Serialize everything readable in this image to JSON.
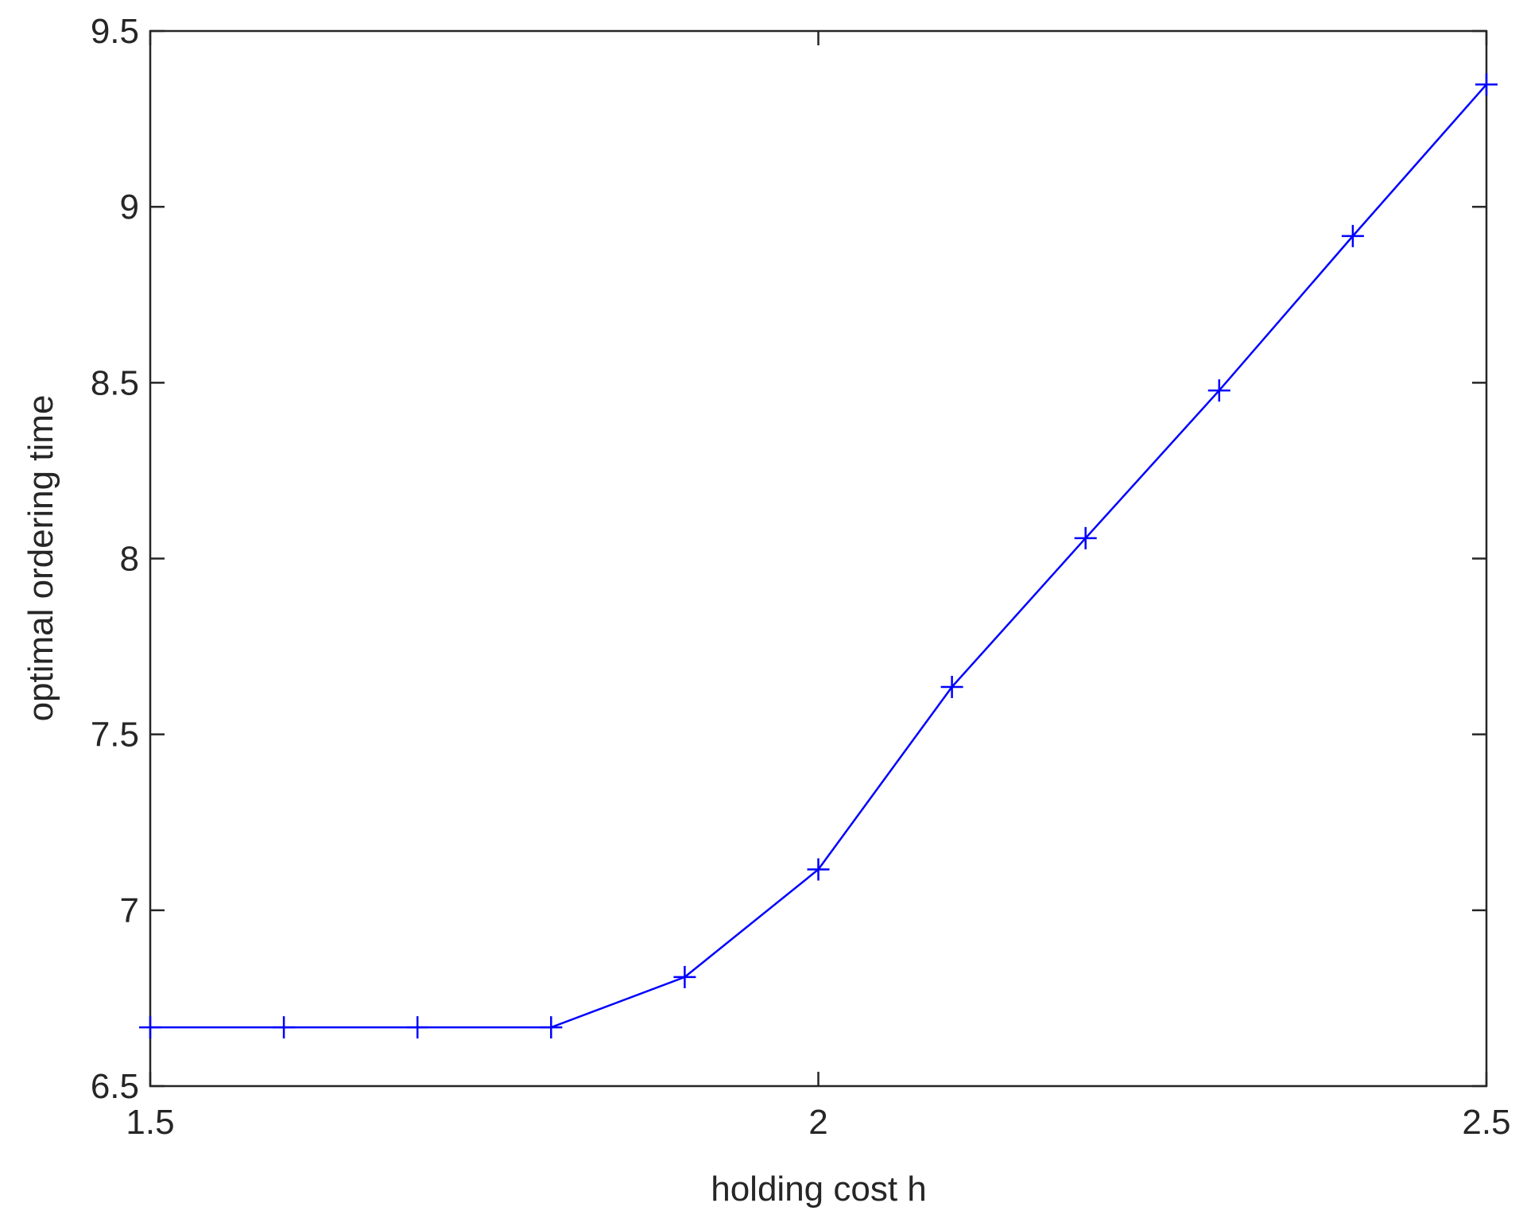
{
  "chart_data": {
    "type": "line",
    "x_label": "holding cost h",
    "y_label": "optimal ordering time",
    "x": [
      1.5,
      1.6,
      1.7,
      1.8,
      1.9,
      2.0,
      2.1,
      2.2,
      2.3,
      2.4,
      2.5
    ],
    "series": [
      {
        "color": "#0000ff",
        "marker": "+",
        "values": [
          6.667,
          6.667,
          6.667,
          6.667,
          6.81,
          7.116,
          7.635,
          8.058,
          8.478,
          8.917,
          9.348
        ]
      }
    ],
    "xlim": [
      1.5,
      2.5
    ],
    "xticks": [
      1.5,
      2,
      2.5
    ],
    "ylim": [
      6.5,
      9.5
    ],
    "yticks": [
      6.5,
      7,
      7.5,
      8,
      8.5,
      9,
      9.5
    ],
    "grid": false
  }
}
